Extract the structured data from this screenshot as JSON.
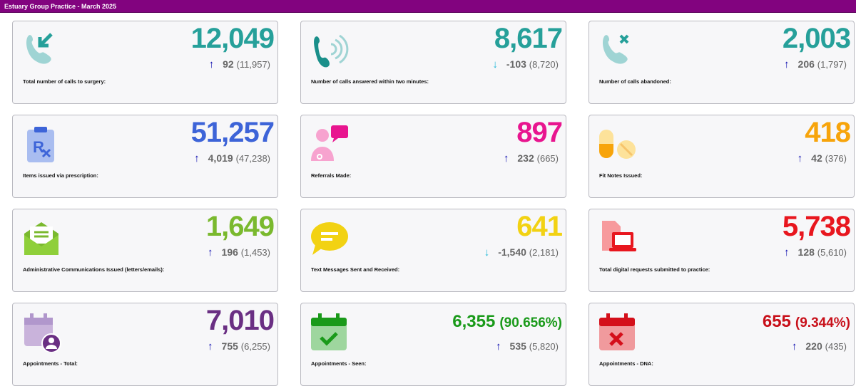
{
  "header": {
    "title": "Estuary Group Practice - March 2025"
  },
  "cards": [
    {
      "icon": "phone-incoming-icon",
      "value": "12,049",
      "pct": "",
      "change": "92",
      "trend": "up",
      "previous": "(11,957)",
      "label": "Total number of calls to surgery:",
      "color": "#26a09a"
    },
    {
      "icon": "phone-ringing-icon",
      "value": "8,617",
      "pct": "",
      "change": "-103",
      "trend": "down",
      "previous": "(8,720)",
      "label": "Number of calls answered within two minutes:",
      "color": "#26a09a"
    },
    {
      "icon": "phone-missed-icon",
      "value": "2,003",
      "pct": "",
      "change": "206",
      "trend": "up",
      "previous": "(1,797)",
      "label": "Number of calls abandoned:",
      "color": "#26a09a"
    },
    {
      "icon": "prescription-clipboard-icon",
      "value": "51,257",
      "pct": "",
      "change": "4,019",
      "trend": "up",
      "previous": "(47,238)",
      "label": "Items issued via prescription:",
      "color": "#3d64d8"
    },
    {
      "icon": "doctor-referral-icon",
      "value": "897",
      "pct": "",
      "change": "232",
      "trend": "up",
      "previous": "(665)",
      "label": "Referrals Made:",
      "color": "#e8158f"
    },
    {
      "icon": "pills-icon",
      "value": "418",
      "pct": "",
      "change": "42",
      "trend": "up",
      "previous": "(376)",
      "label": "Fit Notes Issued:",
      "color": "#f7a40b"
    },
    {
      "icon": "open-envelope-icon",
      "value": "1,649",
      "pct": "",
      "change": "196",
      "trend": "up",
      "previous": "(1,453)",
      "label": "Administrative Communications Issued (letters/emails):",
      "color": "#7ab92e"
    },
    {
      "icon": "chat-bubble-icon",
      "value": "641",
      "pct": "",
      "change": "-1,540",
      "trend": "down",
      "previous": "(2,181)",
      "label": "Text Messages Sent and Received:",
      "color": "#f2d213"
    },
    {
      "icon": "digital-request-icon",
      "value": "5,738",
      "pct": "",
      "change": "128",
      "trend": "up",
      "previous": "(5,610)",
      "label": "Total digital requests submitted to practice:",
      "color": "#e8161e"
    },
    {
      "icon": "calendar-user-icon",
      "value": "7,010",
      "pct": "",
      "change": "755",
      "trend": "up",
      "previous": "(6,255)",
      "label": "Appointments - Total:",
      "color": "#6a2f83"
    },
    {
      "icon": "calendar-check-icon",
      "value": "6,355",
      "pct": "(90.656%)",
      "change": "535",
      "trend": "up",
      "previous": "(5,820)",
      "label": "Appointments - Seen:",
      "color": "#1a9a1a"
    },
    {
      "icon": "calendar-x-icon",
      "value": "655",
      "pct": "(9.344%)",
      "change": "220",
      "trend": "up",
      "previous": "(435)",
      "label": "Appointments - DNA:",
      "color": "#c8101a"
    }
  ],
  "trend_colors": {
    "up": "#1010b0",
    "down": "#22b8d8"
  }
}
